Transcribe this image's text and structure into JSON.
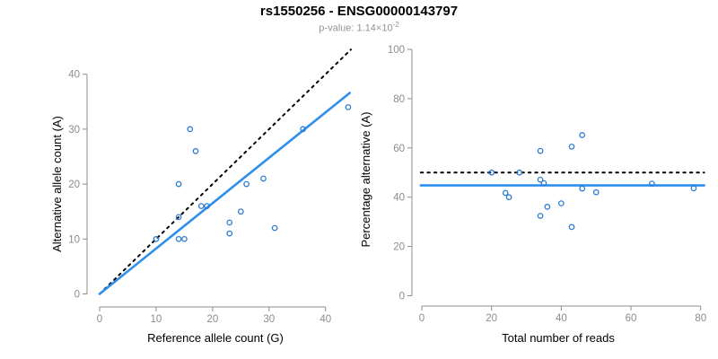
{
  "header": {
    "title": "rs1550256 - ENSG00000143797",
    "p_value_label": "p-value: 1.14×10",
    "p_value_exponent": "-2"
  },
  "colors": {
    "point": "#2B7BD4",
    "fit_line": "#2D8FEB",
    "reference_line": "#000000",
    "axis": "#8C8C8C",
    "tick_label": "#8C8C8C",
    "axis_title": "#000000"
  },
  "chart_data": [
    {
      "type": "scatter",
      "name": "allele-counts",
      "xlabel": "Reference allele count (G)",
      "ylabel": "Alternative allele count (A)",
      "xticks": [
        0,
        10,
        20,
        30,
        40
      ],
      "yticks": [
        0,
        10,
        20,
        30,
        40
      ],
      "xlim": [
        0,
        44
      ],
      "ylim": [
        0,
        44
      ],
      "grid": false,
      "legend": "none",
      "points": [
        [
          10,
          10
        ],
        [
          14,
          10
        ],
        [
          15,
          10
        ],
        [
          14,
          14
        ],
        [
          23,
          11
        ],
        [
          31,
          12
        ],
        [
          23,
          13
        ],
        [
          25,
          15
        ],
        [
          18,
          16
        ],
        [
          19,
          16
        ],
        [
          14,
          20
        ],
        [
          26,
          20
        ],
        [
          29,
          21
        ],
        [
          17,
          26
        ],
        [
          16,
          30
        ],
        [
          36,
          30
        ],
        [
          44,
          34
        ]
      ],
      "lines": [
        {
          "style": "dotted",
          "color_key": "reference_line",
          "from": [
            0,
            0
          ],
          "to": [
            44.5,
            44.5
          ]
        },
        {
          "style": "solid",
          "color_key": "fit_line",
          "from": [
            0,
            0
          ],
          "to": [
            44.3,
            36.6
          ]
        }
      ]
    },
    {
      "type": "scatter",
      "name": "percentage-vs-reads",
      "xlabel": "Total number of reads",
      "ylabel": "Percentage alternative (A)",
      "xticks": [
        0,
        20,
        40,
        60,
        80
      ],
      "yticks": [
        0,
        20,
        40,
        60,
        80,
        100
      ],
      "xlim": [
        0,
        81
      ],
      "ylim": [
        0,
        100
      ],
      "grid": false,
      "legend": "none",
      "points": [
        [
          20,
          50
        ],
        [
          24,
          41.7
        ],
        [
          25,
          40
        ],
        [
          28,
          50
        ],
        [
          34,
          32.4
        ],
        [
          34,
          47.1
        ],
        [
          34,
          58.8
        ],
        [
          35,
          45.7
        ],
        [
          36,
          36.1
        ],
        [
          40,
          37.5
        ],
        [
          43,
          27.9
        ],
        [
          43,
          60.5
        ],
        [
          46,
          43.5
        ],
        [
          46,
          65.2
        ],
        [
          50,
          42
        ],
        [
          66,
          45.5
        ],
        [
          78,
          43.6
        ]
      ],
      "lines": [
        {
          "style": "dotted",
          "color_key": "reference_line",
          "from": [
            -0.3,
            50
          ],
          "to": [
            81,
            50
          ]
        },
        {
          "style": "solid",
          "color_key": "fit_line",
          "from": [
            -0.3,
            44.8
          ],
          "to": [
            81,
            44.8
          ]
        }
      ]
    }
  ]
}
